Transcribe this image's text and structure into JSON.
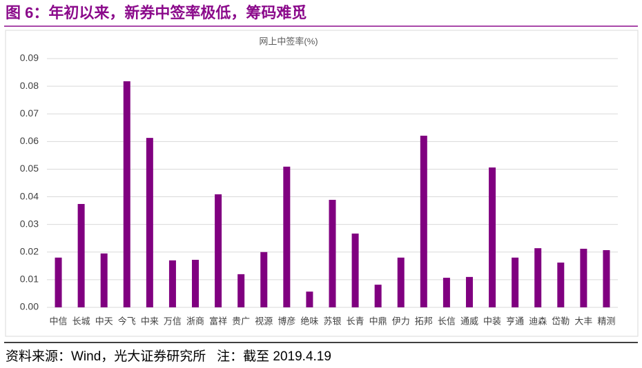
{
  "header": {
    "title": "图 6：年初以来，新券中签率极低，筹码难觅"
  },
  "chart_data": {
    "type": "bar",
    "title": "网上中签率(%)",
    "categories": [
      "中信",
      "长城",
      "中天",
      "今飞",
      "中来",
      "万信",
      "浙商",
      "富祥",
      "贵广",
      "视源",
      "博彦",
      "绝味",
      "苏银",
      "长青",
      "中鼎",
      "伊力",
      "拓邦",
      "长信",
      "通威",
      "中装",
      "亨通",
      "迪森",
      "岱勒",
      "大丰",
      "精测"
    ],
    "values": [
      0.018,
      0.0374,
      0.0195,
      0.0818,
      0.0613,
      0.017,
      0.0172,
      0.0409,
      0.012,
      0.02,
      0.0509,
      0.0057,
      0.0389,
      0.0267,
      0.0082,
      0.018,
      0.0621,
      0.0107,
      0.011,
      0.0506,
      0.018,
      0.0214,
      0.0162,
      0.0212,
      0.0207
    ],
    "color": "#800080",
    "ylim": [
      0,
      0.09
    ],
    "yticks": [
      {
        "value": 0,
        "label": "0.00"
      },
      {
        "value": 0.01,
        "label": "0.01"
      },
      {
        "value": 0.02,
        "label": "0.02"
      },
      {
        "value": 0.03,
        "label": "0.03"
      },
      {
        "value": 0.04,
        "label": "0.04"
      },
      {
        "value": 0.05,
        "label": "0.05"
      },
      {
        "value": 0.06,
        "label": "0.06"
      },
      {
        "value": 0.07,
        "label": "0.07"
      },
      {
        "value": 0.08,
        "label": "0.08"
      },
      {
        "value": 0.09,
        "label": "0.09"
      }
    ],
    "grid": true
  },
  "footer": {
    "source": "资料来源：Wind，光大证券研究所   注：截至 2019.4.19"
  }
}
